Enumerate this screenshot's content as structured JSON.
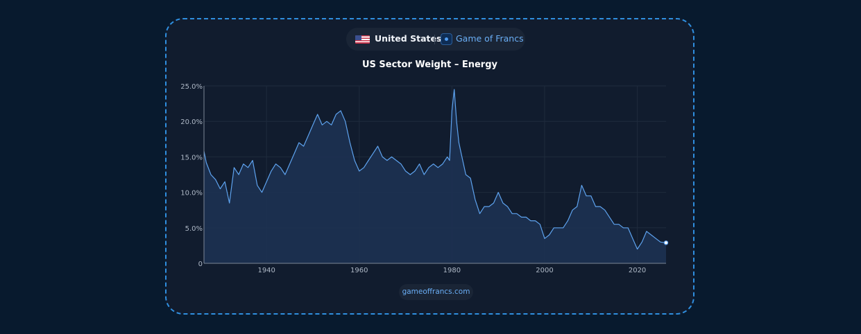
{
  "header": {
    "country": "United States",
    "brand": "Game of Francs",
    "flag_icon": "us-flag-icon",
    "brand_icon": "game-of-francs-logo-icon"
  },
  "footer": {
    "site": "gameoffrancs.com"
  },
  "colors": {
    "background": "#081a2e",
    "card": "#111c2e",
    "card_border": "#2f8fe0",
    "line": "#5ea3ef",
    "area": "#1d3354",
    "accent_text": "#6aaef5"
  },
  "chart_data": {
    "type": "area",
    "title": "US Sector Weight – Energy",
    "xlabel": "",
    "ylabel": "",
    "xlim": [
      1926.5,
      2026.2
    ],
    "ylim": [
      0,
      25
    ],
    "x_ticks": [
      1940,
      1960,
      1980,
      2000,
      2020
    ],
    "y_ticks": [
      0,
      5,
      10,
      15,
      20,
      25
    ],
    "y_tick_labels": [
      "0",
      "5.0%",
      "10.0%",
      "15.0%",
      "20.0%",
      "25.0%"
    ],
    "grid": true,
    "series": [
      {
        "x": [
          1926.5,
          1927,
          1928,
          1929,
          1930,
          1931,
          1932,
          1933,
          1934,
          1935,
          1936,
          1937,
          1938,
          1939,
          1940,
          1941,
          1942,
          1943,
          1944,
          1945,
          1946,
          1947,
          1948,
          1949,
          1950,
          1951,
          1952,
          1953,
          1954,
          1955,
          1956,
          1957,
          1958,
          1959,
          1960,
          1961,
          1962,
          1963,
          1964,
          1965,
          1966,
          1967,
          1968,
          1969,
          1970,
          1971,
          1972,
          1973,
          1974,
          1975,
          1976,
          1977,
          1978,
          1979,
          1979.5,
          1980,
          1980.5,
          1981,
          1981.5,
          1982,
          1983,
          1984,
          1985,
          1986,
          1987,
          1988,
          1989,
          1990,
          1991,
          1992,
          1993,
          1994,
          1995,
          1996,
          1997,
          1998,
          1999,
          2000,
          2001,
          2002,
          2003,
          2004,
          2005,
          2006,
          2007,
          2008,
          2009,
          2010,
          2011,
          2012,
          2013,
          2014,
          2015,
          2016,
          2017,
          2018,
          2019,
          2020,
          2021,
          2022,
          2023,
          2024,
          2025,
          2026.2
        ],
        "y": [
          15.8,
          14.2,
          12.5,
          11.8,
          10.5,
          11.5,
          8.5,
          13.5,
          12.5,
          14.0,
          13.5,
          14.5,
          11.0,
          10.0,
          11.5,
          13.0,
          14.0,
          13.5,
          12.5,
          14.0,
          15.5,
          17.0,
          16.5,
          18.0,
          19.5,
          21.0,
          19.5,
          20.0,
          19.5,
          21.0,
          21.5,
          20.0,
          17.0,
          14.5,
          13.0,
          13.5,
          14.5,
          15.5,
          16.5,
          15.0,
          14.5,
          15.0,
          14.5,
          14.0,
          13.0,
          12.5,
          13.0,
          14.0,
          12.5,
          13.5,
          14.0,
          13.5,
          14.0,
          15.0,
          14.5,
          21.5,
          24.5,
          20.0,
          17.0,
          15.5,
          12.5,
          12.0,
          9.0,
          7.0,
          8.0,
          8.0,
          8.5,
          10.0,
          8.5,
          8.0,
          7.0,
          7.0,
          6.5,
          6.5,
          6.0,
          6.0,
          5.5,
          3.5,
          4.0,
          5.0,
          5.0,
          5.0,
          6.0,
          7.5,
          8.0,
          11.0,
          9.5,
          9.5,
          8.0,
          8.0,
          7.5,
          6.5,
          5.5,
          5.5,
          5.0,
          5.0,
          3.5,
          2.0,
          3.0,
          4.5,
          4.0,
          3.5,
          3.0,
          2.9
        ]
      }
    ]
  }
}
